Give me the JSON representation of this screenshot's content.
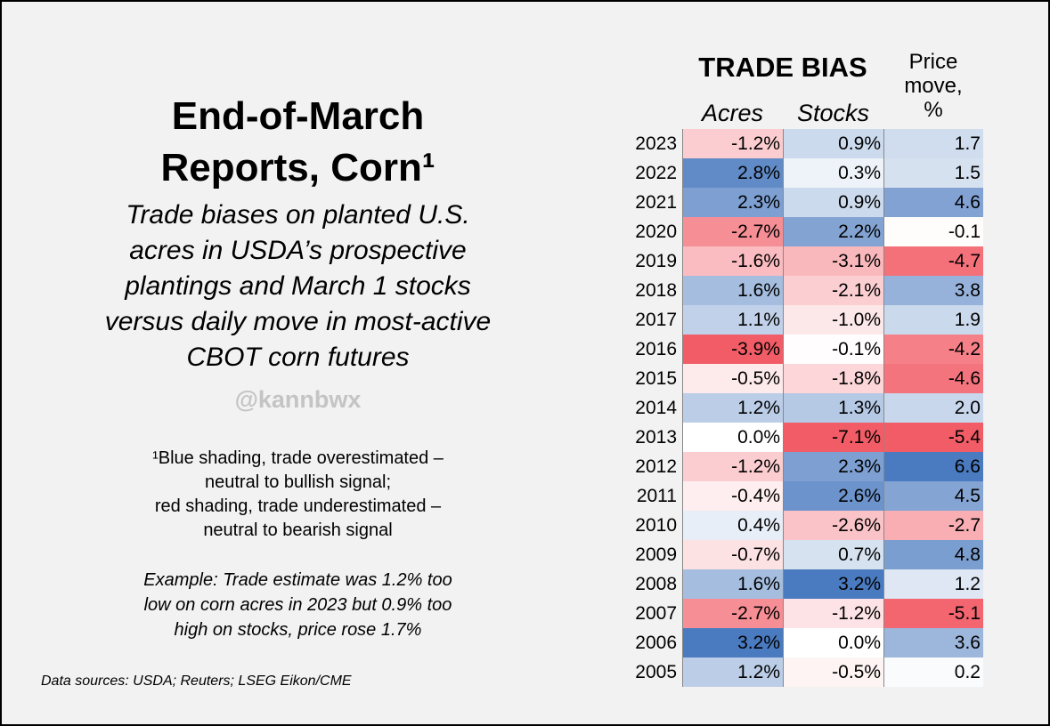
{
  "title_lines": [
    "End-of-March",
    "Reports, Corn¹"
  ],
  "subtitle_lines": [
    "Trade biases on planted U.S.",
    "acres in USDA’s prospective",
    "plantings and March 1 stocks",
    "versus daily move in most-active",
    "CBOT corn futures"
  ],
  "handle": "@kannbwx",
  "footnote_lines": [
    "¹Blue shading, trade overestimated –",
    "neutral to bullish signal;",
    "red shading, trade underestimated –",
    "neutral to bearish signal"
  ],
  "example_lines": [
    "Example: Trade estimate was 1.2% too",
    "low on corn acres in 2023 but 0.9% too",
    "high on stocks, price rose 1.7%"
  ],
  "sources": "Data sources: USDA; Reuters; LSEG Eikon/CME",
  "colors": {
    "frame_bg": "#f2f2f2",
    "positive_blue": "#4a7abf",
    "negative_red": "#f25c66",
    "neutral_white": "#ffffff"
  },
  "chart_data": {
    "type": "table",
    "header": {
      "group_title": "TRADE BIAS",
      "price_title_lines": [
        "Price",
        "move,",
        "%"
      ],
      "col_acres": "Acres",
      "col_stocks": "Stocks"
    },
    "years": [
      "2023",
      "2022",
      "2021",
      "2020",
      "2019",
      "2018",
      "2017",
      "2016",
      "2015",
      "2014",
      "2013",
      "2012",
      "2011",
      "2010",
      "2009",
      "2008",
      "2007",
      "2006",
      "2005"
    ],
    "acres": [
      "-1.2%",
      "2.8%",
      "2.3%",
      "-2.7%",
      "-1.6%",
      "1.6%",
      "1.1%",
      "-3.9%",
      "-0.5%",
      "1.2%",
      "0.0%",
      "-1.2%",
      "-0.4%",
      "0.4%",
      "-0.7%",
      "1.6%",
      "-2.7%",
      "3.2%",
      "1.2%"
    ],
    "stocks": [
      "0.9%",
      "0.3%",
      "0.9%",
      "2.2%",
      "-3.1%",
      "-2.1%",
      "-1.0%",
      "-0.1%",
      "-1.8%",
      "1.3%",
      "-7.1%",
      "2.3%",
      "2.6%",
      "-2.6%",
      "0.7%",
      "3.2%",
      "-1.2%",
      "0.0%",
      "-0.5%"
    ],
    "price": [
      "1.7",
      "1.5",
      "4.6",
      "-0.1",
      "-4.7",
      "3.8",
      "1.9",
      "-4.2",
      "-4.6",
      "2.0",
      "-5.4",
      "6.6",
      "4.5",
      "-2.7",
      "4.8",
      "1.2",
      "-5.1",
      "3.6",
      "0.2"
    ],
    "acres_values": [
      -1.2,
      2.8,
      2.3,
      -2.7,
      -1.6,
      1.6,
      1.1,
      -3.9,
      -0.5,
      1.2,
      0.0,
      -1.2,
      -0.4,
      0.4,
      -0.7,
      1.6,
      -2.7,
      3.2,
      1.2
    ],
    "stocks_values": [
      0.9,
      0.3,
      0.9,
      2.2,
      -3.1,
      -2.1,
      -1.0,
      -0.1,
      -1.8,
      1.3,
      -7.1,
      2.3,
      2.6,
      -2.6,
      0.7,
      3.2,
      -1.2,
      0.0,
      -0.5
    ],
    "price_values": [
      1.7,
      1.5,
      4.6,
      -0.1,
      -4.7,
      3.8,
      1.9,
      -4.2,
      -4.6,
      2.0,
      -5.4,
      6.6,
      4.5,
      -2.7,
      4.8,
      1.2,
      -5.1,
      3.6,
      0.2
    ]
  }
}
